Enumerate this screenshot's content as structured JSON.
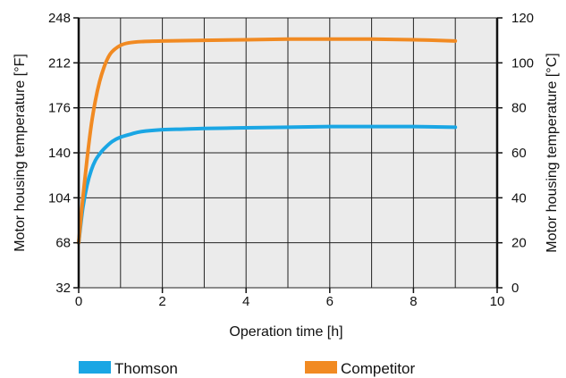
{
  "chart_data": {
    "type": "line",
    "xlabel": "Operation time [h]",
    "ylabel": "Motor housing temperature [°F]",
    "ylabel_right": "Motor housing temperature [°C]",
    "xlim": [
      0,
      10
    ],
    "ylim": [
      32,
      248
    ],
    "ylim_right": [
      0,
      120
    ],
    "x_ticks": [
      "0",
      "2",
      "4",
      "6",
      "8",
      "10"
    ],
    "y_ticks_left": [
      "32",
      "68",
      "104",
      "140",
      "176",
      "212",
      "248"
    ],
    "y_ticks_right": [
      "0",
      "20",
      "40",
      "60",
      "80",
      "100",
      "120"
    ],
    "grid": true,
    "legend_position": "bottom",
    "series": [
      {
        "name": "Thomson",
        "color": "#1aa6e4",
        "x": [
          0,
          0.1,
          0.2,
          0.3,
          0.4,
          0.5,
          0.6,
          0.8,
          1.0,
          1.25,
          1.5,
          2.0,
          2.5,
          3,
          4,
          5,
          6,
          7,
          8,
          9
        ],
        "y": [
          68,
          96,
          114,
          126,
          134,
          139,
          143,
          149,
          152.5,
          155,
          157,
          158.5,
          159,
          159.5,
          160,
          160.5,
          161,
          161,
          161,
          160.5
        ]
      },
      {
        "name": "Competitor",
        "color": "#f18a22",
        "x": [
          0,
          0.1,
          0.2,
          0.3,
          0.4,
          0.5,
          0.6,
          0.7,
          0.8,
          1.0,
          1.2,
          1.5,
          2.0,
          3,
          4,
          5,
          6,
          7,
          8,
          9
        ],
        "y": [
          68,
          104,
          135,
          162,
          182,
          197,
          208,
          216,
          221,
          226,
          228,
          229,
          229.5,
          230,
          230.5,
          231,
          231,
          231,
          230.5,
          229.5
        ]
      }
    ]
  }
}
